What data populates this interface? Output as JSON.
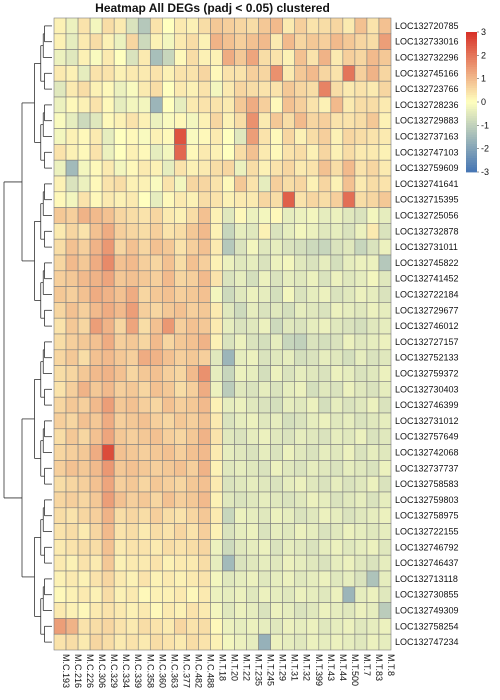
{
  "chart_data": {
    "type": "heatmap",
    "title": "Heatmap All DEGs (padj < 0.05) clustered",
    "columns": [
      "M.C.193",
      "M.C.216",
      "M.C.226",
      "M.C.306",
      "M.C.329",
      "M.C.334",
      "M.C.339",
      "M.C.358",
      "M.C.360",
      "M.C.363",
      "M.C.377",
      "M.C.482",
      "M.C.488",
      "M.T.18",
      "M.T.20",
      "M.T.22",
      "M.T.235",
      "M.T.245",
      "M.T.29",
      "M.T.31",
      "M.T.32",
      "M.T.399",
      "M.T.43",
      "M.T.44",
      "M.T.500",
      "M.T.7",
      "M.T.83",
      "M.T.8"
    ],
    "rows": [
      "LOC132720785",
      "LOC132733016",
      "LOC132732296",
      "LOC132745166",
      "LOC132723766",
      "LOC132728236",
      "LOC132729883",
      "LOC132737163",
      "LOC132747103",
      "LOC132759609",
      "LOC132741641",
      "LOC132715395",
      "LOC132725056",
      "LOC132732878",
      "LOC132731011",
      "LOC132745822",
      "LOC132741452",
      "LOC132722184",
      "LOC132729677",
      "LOC132746012",
      "LOC132727157",
      "LOC132752133",
      "LOC132759372",
      "LOC132730403",
      "LOC132746399",
      "LOC132731012",
      "LOC132757649",
      "LOC132742068",
      "LOC132737737",
      "LOC132758583",
      "LOC132759803",
      "LOC132758975",
      "LOC132722155",
      "LOC132746792",
      "LOC132746437",
      "LOC132713118",
      "LOC132730855",
      "LOC132749309",
      "LOC132758254",
      "LOC132747234"
    ],
    "values": [
      [
        0.2,
        -0.3,
        0.4,
        -0.2,
        0.5,
        0.3,
        -0.6,
        -1.2,
        0.4,
        0.0,
        0.3,
        0.2,
        0.5,
        0.8,
        0.7,
        0.6,
        0.5,
        0.8,
        1.0,
        0.3,
        0.7,
        0.4,
        0.5,
        0.6,
        0.3,
        0.9,
        0.4,
        0.9
      ],
      [
        0.2,
        -0.4,
        0.3,
        0.5,
        0.2,
        -0.3,
        0.6,
        -0.8,
        0.2,
        -0.2,
        0.3,
        0.5,
        0.2,
        1.1,
        0.9,
        0.7,
        0.9,
        1.0,
        0.3,
        1.0,
        0.6,
        0.8,
        0.7,
        1.0,
        0.8,
        0.6,
        0.5,
        1.4
      ],
      [
        -0.3,
        -0.5,
        0.2,
        -0.1,
        0.3,
        0.0,
        -0.6,
        0.3,
        -1.4,
        -0.9,
        0.1,
        0.5,
        0.2,
        0.2,
        1.2,
        0.8,
        1.3,
        0.5,
        0.4,
        0.2,
        0.9,
        0.4,
        1.1,
        0.3,
        0.7,
        0.6,
        1.0,
        0.8
      ],
      [
        0.3,
        0.2,
        -0.4,
        0.4,
        0.4,
        0.2,
        0.3,
        0.3,
        0.4,
        0.2,
        0.4,
        0.4,
        0.6,
        0.1,
        0.4,
        0.4,
        0.7,
        0.6,
        1.6,
        0.3,
        0.8,
        1.0,
        0.6,
        0.4,
        2.0,
        0.7,
        1.1,
        0.6
      ],
      [
        -0.5,
        0.3,
        0.5,
        0.2,
        0.1,
        -0.3,
        -0.1,
        0.3,
        0.5,
        0.0,
        0.3,
        0.2,
        0.4,
        -0.2,
        0.3,
        0.6,
        0.5,
        0.4,
        0.4,
        0.8,
        0.6,
        0.5,
        1.8,
        0.5,
        0.3,
        0.4,
        0.3,
        0.6
      ],
      [
        -0.3,
        0.1,
        0.2,
        0.4,
        0.1,
        -0.4,
        -0.2,
        -0.2,
        -1.6,
        0.0,
        -0.4,
        0.3,
        0.4,
        0.4,
        0.3,
        0.8,
        1.2,
        0.7,
        0.1,
        0.9,
        0.7,
        0.4,
        0.2,
        1.0,
        0.3,
        0.5,
        0.5,
        0.3
      ],
      [
        -0.1,
        -0.4,
        -0.8,
        -0.5,
        0.1,
        0.2,
        0.4,
        0.2,
        -0.3,
        -0.1,
        0.1,
        -0.2,
        0.2,
        0.6,
        0.2,
        0.5,
        1.6,
        0.3,
        0.8,
        0.5,
        1.0,
        0.6,
        0.7,
        0.4,
        0.4,
        0.5,
        0.8,
        0.2
      ],
      [
        -0.2,
        0.2,
        0.1,
        0.3,
        -0.4,
        0.0,
        0.1,
        -0.1,
        0.2,
        0.1,
        2.5,
        -0.1,
        0.1,
        0.3,
        0.0,
        -0.5,
        1.4,
        0.4,
        0.1,
        0.6,
        0.2,
        0.5,
        0.7,
        0.2,
        0.6,
        0.5,
        0.4,
        0.3
      ],
      [
        0.4,
        0.2,
        0.1,
        0.4,
        -0.3,
        0.0,
        0.2,
        0.1,
        -0.4,
        -0.2,
        2.2,
        0.1,
        0.3,
        0.2,
        0.0,
        0.5,
        0.9,
        0.3,
        0.1,
        0.4,
        0.5,
        0.2,
        0.6,
        0.2,
        0.5,
        0.3,
        0.3,
        0.2
      ],
      [
        -0.3,
        -1.5,
        -0.2,
        0.1,
        0.3,
        -0.2,
        0.1,
        0.3,
        0.2,
        -0.4,
        0.4,
        0.2,
        0.3,
        0.5,
        0.6,
        -0.3,
        0.5,
        0.2,
        0.4,
        0.6,
        0.3,
        0.4,
        0.9,
        0.5,
        1.0,
        0.4,
        0.6,
        0.3
      ],
      [
        0.2,
        -0.6,
        -0.3,
        0.1,
        0.4,
        0.5,
        0.2,
        0.2,
        -0.1,
        0.4,
        -0.2,
        0.6,
        0.6,
        0.4,
        0.1,
        0.8,
        0.4,
        -0.4,
        0.7,
        0.5,
        0.6,
        0.2,
        0.6,
        0.2,
        0.9,
        0.3,
        0.5,
        0.4
      ],
      [
        0.1,
        -0.2,
        0.4,
        0.1,
        0.3,
        0.2,
        0.3,
        0.0,
        -0.4,
        0.1,
        0.3,
        0.2,
        0.5,
        0.4,
        0.2,
        0.3,
        0.3,
        0.6,
        0.5,
        2.3,
        0.4,
        0.6,
        0.5,
        0.7,
        2.1,
        0.5,
        0.6,
        0.8
      ],
      [
        0.8,
        0.7,
        1.1,
        1.0,
        0.9,
        0.6,
        0.5,
        0.4,
        0.6,
        0.3,
        0.2,
        0.5,
        0.9,
        0.2,
        -0.5,
        0.1,
        -0.3,
        -0.2,
        0.1,
        -0.4,
        -0.3,
        -0.2,
        -0.4,
        -0.3,
        -0.5,
        -0.6,
        -0.2,
        -0.4
      ],
      [
        0.3,
        0.6,
        0.4,
        0.9,
        1.2,
        0.7,
        0.6,
        0.5,
        0.7,
        0.4,
        0.5,
        0.8,
        1.0,
        0.2,
        -0.9,
        -0.4,
        -0.5,
        0.2,
        -0.6,
        -0.4,
        -0.2,
        -0.3,
        -0.5,
        -0.4,
        -0.6,
        -0.3,
        0.3,
        -0.6
      ],
      [
        0.5,
        0.9,
        0.7,
        1.1,
        1.5,
        0.6,
        0.9,
        0.6,
        0.9,
        0.8,
        0.4,
        0.7,
        0.9,
        0.3,
        -1.2,
        -0.6,
        -0.2,
        -0.5,
        -0.4,
        -0.6,
        -0.7,
        -0.8,
        -0.9,
        -0.6,
        -0.5,
        -0.9,
        -0.6,
        -0.3
      ],
      [
        0.6,
        1.0,
        0.8,
        1.2,
        1.7,
        0.9,
        1.0,
        0.7,
        0.6,
        0.9,
        0.5,
        0.9,
        0.7,
        0.2,
        -0.3,
        -0.5,
        -0.4,
        -0.6,
        -0.3,
        -0.2,
        -0.5,
        -0.6,
        -0.4,
        -0.7,
        -0.4,
        -0.3,
        -0.3,
        -1.2
      ],
      [
        0.7,
        0.8,
        1.0,
        1.1,
        1.3,
        0.8,
        0.9,
        0.8,
        0.7,
        1.0,
        0.6,
        0.7,
        1.0,
        0.4,
        -0.6,
        -0.4,
        -0.7,
        -0.3,
        -0.6,
        -0.4,
        -0.5,
        -0.3,
        -0.6,
        -0.3,
        -0.5,
        -0.4,
        -0.2,
        -0.5
      ],
      [
        0.8,
        0.7,
        0.9,
        1.2,
        1.1,
        0.9,
        1.2,
        0.6,
        0.8,
        0.9,
        0.7,
        0.8,
        0.9,
        -0.2,
        -0.8,
        -0.5,
        -0.3,
        -0.4,
        -0.7,
        -0.2,
        -0.6,
        -0.4,
        -0.3,
        -0.6,
        -0.5,
        -0.3,
        -0.4,
        -0.6
      ],
      [
        0.6,
        0.9,
        0.7,
        1.0,
        1.2,
        1.0,
        1.4,
        0.7,
        0.6,
        0.8,
        0.9,
        0.7,
        0.8,
        0.3,
        -0.5,
        -0.8,
        -0.4,
        -0.6,
        -0.5,
        -0.7,
        -0.4,
        -0.5,
        -0.6,
        -0.3,
        -0.4,
        -0.5,
        -0.3,
        -0.4
      ],
      [
        0.4,
        0.8,
        0.6,
        1.4,
        1.1,
        0.6,
        1.3,
        0.5,
        0.9,
        1.5,
        0.7,
        0.9,
        0.8,
        0.3,
        -0.4,
        -0.6,
        -0.5,
        -0.3,
        -0.8,
        -0.5,
        -0.6,
        -0.4,
        -0.3,
        -0.5,
        -0.6,
        -0.7,
        -0.5,
        -0.4
      ],
      [
        0.5,
        0.7,
        0.8,
        0.9,
        1.2,
        0.7,
        0.8,
        0.6,
        1.0,
        0.6,
        0.8,
        0.9,
        1.1,
        0.2,
        -0.6,
        -0.3,
        -0.6,
        -0.7,
        -0.4,
        -0.9,
        -1.0,
        -0.6,
        -0.7,
        -0.6,
        -0.3,
        -0.5,
        -0.4,
        -0.3
      ],
      [
        0.6,
        0.8,
        0.5,
        0.9,
        1.0,
        0.8,
        0.7,
        1.2,
        1.1,
        0.9,
        0.7,
        0.8,
        0.7,
        -0.5,
        -1.6,
        -0.4,
        -0.3,
        -0.6,
        -0.5,
        -0.4,
        -0.7,
        -0.6,
        -0.4,
        -0.5,
        -0.7,
        -0.4,
        -0.6,
        -0.5
      ],
      [
        0.5,
        0.6,
        0.8,
        1.0,
        1.1,
        0.9,
        0.6,
        0.8,
        0.9,
        0.7,
        0.6,
        1.0,
        1.6,
        -0.4,
        -0.9,
        -0.3,
        -0.4,
        -0.7,
        -0.3,
        -0.6,
        -0.4,
        -0.5,
        -0.6,
        -0.3,
        -0.4,
        -0.6,
        -0.5,
        -0.3
      ],
      [
        0.4,
        0.7,
        1.1,
        0.8,
        1.0,
        0.7,
        0.8,
        0.6,
        0.9,
        0.8,
        0.5,
        0.7,
        1.2,
        -0.3,
        -1.1,
        -0.5,
        -0.6,
        -0.4,
        -0.6,
        -0.4,
        -0.3,
        -0.7,
        -0.5,
        -0.6,
        -0.3,
        -0.5,
        -0.6,
        -0.4
      ],
      [
        0.6,
        0.8,
        0.7,
        1.0,
        1.4,
        0.8,
        0.9,
        0.7,
        0.6,
        0.9,
        0.7,
        0.8,
        1.0,
        0.2,
        -0.4,
        -0.3,
        -0.5,
        -0.6,
        -0.7,
        -0.4,
        -0.5,
        -0.3,
        -0.7,
        -0.4,
        -0.6,
        -0.5,
        -0.3,
        -0.6
      ],
      [
        0.7,
        0.6,
        0.9,
        0.8,
        1.2,
        0.7,
        0.8,
        0.9,
        0.7,
        0.6,
        0.8,
        0.7,
        0.9,
        0.3,
        -0.6,
        -0.4,
        -0.3,
        -0.5,
        -0.4,
        -0.7,
        -0.6,
        -0.4,
        -0.3,
        -0.5,
        -0.4,
        -0.6,
        -0.5,
        -0.4
      ],
      [
        0.5,
        0.8,
        0.6,
        0.9,
        1.3,
        0.8,
        0.7,
        0.8,
        0.9,
        0.7,
        0.6,
        0.8,
        1.1,
        0.4,
        -0.5,
        -0.6,
        -0.4,
        -0.3,
        -0.5,
        -0.6,
        -0.4,
        -0.5,
        -0.6,
        -0.4,
        -0.5,
        -0.3,
        -0.6,
        -0.5
      ],
      [
        0.6,
        0.7,
        0.8,
        1.2,
        2.6,
        0.9,
        0.8,
        0.7,
        0.8,
        0.9,
        0.7,
        0.9,
        1.0,
        0.3,
        -0.4,
        -0.5,
        -0.6,
        -0.4,
        -0.6,
        -0.3,
        -0.5,
        -0.6,
        -0.4,
        -0.5,
        -0.3,
        -0.6,
        -0.4,
        -0.5
      ],
      [
        0.7,
        0.9,
        0.8,
        1.0,
        1.5,
        0.8,
        0.9,
        0.8,
        0.7,
        0.8,
        0.9,
        0.7,
        1.1,
        0.2,
        -0.5,
        -0.4,
        -0.5,
        -0.6,
        -0.3,
        -0.5,
        -0.6,
        -0.4,
        -0.5,
        -0.6,
        -0.4,
        -0.5,
        -0.6,
        -0.3
      ],
      [
        0.5,
        0.6,
        0.7,
        0.9,
        1.3,
        0.7,
        0.8,
        0.6,
        0.8,
        0.7,
        0.6,
        0.8,
        0.9,
        0.3,
        -0.6,
        -0.5,
        -0.4,
        -0.5,
        -0.6,
        -0.4,
        -0.3,
        -0.5,
        -0.6,
        -0.4,
        -0.6,
        -0.5,
        -0.3,
        -0.6
      ],
      [
        0.6,
        0.7,
        0.6,
        0.8,
        1.4,
        0.9,
        0.7,
        0.8,
        0.6,
        0.9,
        0.7,
        0.8,
        1.0,
        0.2,
        -0.5,
        -0.6,
        -0.5,
        -0.4,
        -0.5,
        -0.6,
        -0.5,
        -0.3,
        -0.4,
        -0.6,
        -0.5,
        -0.4,
        -0.6,
        -0.4
      ],
      [
        0.5,
        0.4,
        0.6,
        0.7,
        1.1,
        0.5,
        0.6,
        0.5,
        0.7,
        0.5,
        0.4,
        0.6,
        0.8,
        0.3,
        -0.9,
        -0.3,
        -0.4,
        -0.5,
        -0.3,
        -0.4,
        -0.6,
        -0.5,
        -0.3,
        -0.4,
        -0.6,
        -0.5,
        -0.4,
        -0.3
      ],
      [
        0.4,
        0.5,
        0.3,
        0.6,
        1.0,
        0.4,
        0.5,
        0.3,
        0.5,
        0.4,
        0.6,
        0.4,
        0.7,
        0.2,
        -0.6,
        -0.4,
        -0.3,
        -0.6,
        -0.4,
        -0.5,
        -0.3,
        -0.4,
        -0.6,
        -0.5,
        -0.3,
        -0.4,
        -0.5,
        -0.4
      ],
      [
        0.3,
        0.4,
        0.5,
        0.5,
        0.9,
        0.3,
        0.4,
        0.4,
        0.3,
        0.5,
        0.4,
        0.5,
        0.6,
        -0.3,
        -0.8,
        -0.5,
        -0.4,
        -0.3,
        -0.6,
        -0.4,
        -0.5,
        -0.6,
        -0.4,
        -0.3,
        -0.5,
        -0.4,
        -0.3,
        -0.5
      ],
      [
        0.3,
        0.2,
        0.4,
        0.3,
        0.8,
        0.2,
        0.3,
        0.3,
        0.4,
        0.2,
        0.3,
        0.3,
        0.5,
        -0.4,
        -1.5,
        -0.6,
        -0.5,
        -0.4,
        -0.5,
        -0.3,
        -0.4,
        -0.5,
        -0.6,
        -0.4,
        -0.3,
        -0.5,
        -0.6,
        -0.4
      ],
      [
        0.2,
        0.3,
        0.2,
        0.4,
        0.6,
        0.3,
        0.2,
        0.4,
        0.2,
        0.3,
        0.2,
        0.3,
        0.4,
        -0.2,
        -0.5,
        -0.4,
        -0.3,
        -0.5,
        -0.4,
        -0.3,
        -0.5,
        -0.4,
        -0.3,
        -0.5,
        -0.4,
        -0.6,
        -1.3,
        -0.4
      ],
      [
        0.1,
        0.2,
        0.3,
        0.2,
        0.5,
        0.2,
        0.3,
        0.1,
        0.2,
        0.2,
        0.3,
        0.1,
        0.3,
        -0.3,
        -0.4,
        -0.3,
        -0.5,
        -0.3,
        -0.4,
        -0.5,
        -0.3,
        -0.4,
        -0.5,
        -0.3,
        -1.6,
        -0.4,
        -0.3,
        -0.5
      ],
      [
        0.3,
        0.2,
        0.1,
        0.3,
        0.4,
        0.3,
        0.2,
        0.3,
        0.1,
        0.3,
        0.2,
        0.4,
        0.3,
        -0.2,
        -0.5,
        -0.3,
        -0.4,
        -0.6,
        -0.3,
        -0.4,
        -0.6,
        -0.5,
        -0.3,
        -0.4,
        -0.5,
        -0.3,
        -0.4,
        -1.1
      ],
      [
        1.4,
        1.1,
        0.4,
        0.5,
        0.6,
        0.4,
        0.3,
        0.5,
        0.4,
        0.3,
        0.6,
        0.4,
        0.5,
        0.1,
        -0.3,
        -0.4,
        -0.3,
        -0.4,
        -0.5,
        -0.3,
        -0.4,
        -0.3,
        -0.5,
        -0.4,
        -0.3,
        -0.5,
        -0.4,
        -0.3
      ],
      [
        0.4,
        0.5,
        0.3,
        0.6,
        0.5,
        0.3,
        0.4,
        0.3,
        0.5,
        0.4,
        0.3,
        0.5,
        0.4,
        0.2,
        -0.2,
        -0.3,
        -0.4,
        -1.7,
        -0.3,
        -0.4,
        -0.5,
        -0.3,
        -0.4,
        -0.3,
        -0.4,
        -0.5,
        -0.3,
        -0.4
      ]
    ],
    "colorbar": {
      "min": -3,
      "max": 3,
      "ticks": [
        3,
        2,
        1,
        0,
        -1,
        -2,
        -3
      ]
    },
    "palette": {
      "low": "#4575b4",
      "mid": "#ffffbf",
      "high": "#d73027",
      "cell_border": "#7f7f7f",
      "dendrogram": "#333333"
    },
    "dendrogram": "rows"
  }
}
